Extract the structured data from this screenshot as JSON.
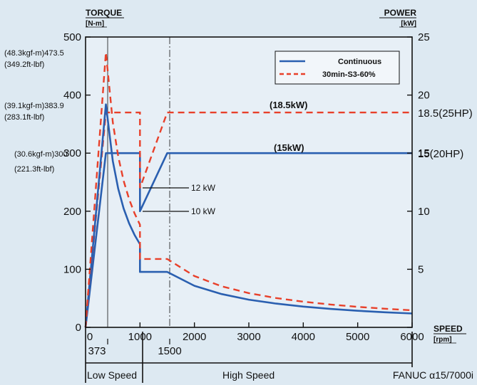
{
  "chart_data": {
    "type": "line",
    "left_axis": {
      "title": "TORQUE",
      "unit": "[N-m]",
      "ylim": [
        0,
        500
      ],
      "ticks": [
        0,
        100,
        200,
        300,
        400,
        500
      ]
    },
    "right_axis": {
      "title": "POWER",
      "unit": "[kW]",
      "ylim": [
        0,
        25
      ],
      "ticks": [
        0,
        5,
        10,
        15,
        20,
        25
      ]
    },
    "x_axis": {
      "title": "SPEED",
      "unit": "[rpm]",
      "xlim": [
        0,
        6000
      ],
      "ticks": [
        0,
        1000,
        2000,
        3000,
        4000,
        5000,
        6000
      ]
    },
    "legend": {
      "placement": "top-right",
      "entries": [
        "Continuous",
        "30min-S3-60%"
      ]
    },
    "colors": {
      "continuous": "#2a5fb0",
      "s3": "#e8402a"
    },
    "series": [
      {
        "name": "Continuous",
        "style": "solid",
        "quantity": "torque",
        "x": [
          0,
          373,
          500,
          600,
          700,
          800,
          900,
          1000,
          1000,
          1500,
          2000,
          2500,
          3000,
          3500,
          4000,
          4500,
          5000,
          5500,
          6000
        ],
        "y": [
          0,
          383.9,
          286.5,
          238.7,
          204.6,
          179.1,
          159.2,
          143.2,
          95.5,
          95.5,
          71.6,
          57.3,
          47.7,
          40.9,
          35.8,
          31.8,
          28.6,
          26.0,
          23.9
        ]
      },
      {
        "name": "30min-S3-60%",
        "style": "dashed",
        "quantity": "torque",
        "x": [
          0,
          373,
          500,
          600,
          700,
          800,
          900,
          1000,
          1000,
          1500,
          2000,
          2500,
          3000,
          3500,
          4000,
          4500,
          5000,
          5500,
          6000
        ],
        "y": [
          0,
          473.5,
          353.3,
          294.4,
          252.3,
          220.8,
          196.3,
          176.7,
          117.8,
          117.8,
          88.3,
          70.7,
          58.9,
          50.5,
          44.2,
          39.3,
          35.3,
          32.1,
          29.4
        ]
      },
      {
        "name": "Continuous",
        "style": "solid",
        "quantity": "power",
        "x": [
          0,
          373,
          1000,
          1000,
          1500,
          6000
        ],
        "y": [
          0,
          15,
          15,
          10,
          15,
          15
        ]
      },
      {
        "name": "30min-S3-60%",
        "style": "dashed",
        "quantity": "power",
        "x": [
          0,
          373,
          1000,
          1000,
          1500,
          6000
        ],
        "y": [
          0,
          18.5,
          18.5,
          12,
          18.5,
          18.5
        ]
      }
    ],
    "annotations": {
      "torque_1_line1": "(48.3kgf-m)473.5",
      "torque_1_line2": "(349.2ft-lbf)",
      "torque_2_line1": "(39.1kgf-m)383.9",
      "torque_2_line2": "(283.1ft-lbf)",
      "torque_3_line1": "(30.6kgf-m)300",
      "torque_3_line2": "(221.3ft-lbf)",
      "power_s3_label": "(18.5kW)",
      "power_cont_label": "(15kW)",
      "power_s3_right": "18.5(25HP)",
      "power_cont_right": "15(20HP)",
      "kw12": "12 kW",
      "kw10": "10 kW",
      "base_speed": "373",
      "switch_speed": "1500",
      "low_speed": "Low Speed",
      "high_speed": "High Speed",
      "model": "FANUC α15/7000i"
    }
  }
}
